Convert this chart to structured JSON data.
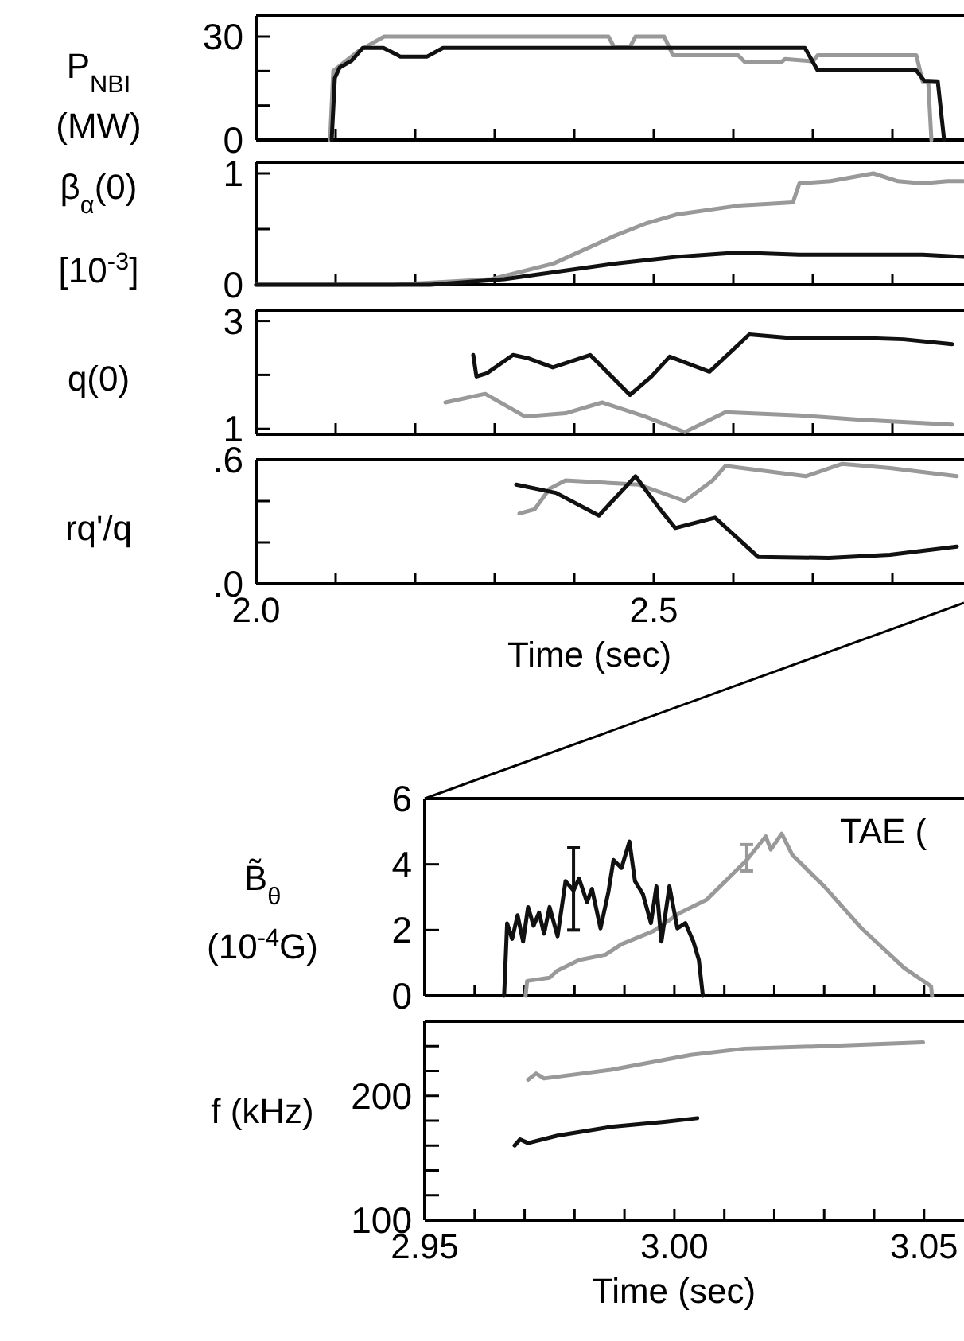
{
  "chart_data": [
    {
      "type": "line",
      "ylabel": "P$_{NBI}$\n(MW)",
      "xlim": [
        2.0,
        2.89
      ],
      "ylim": [
        0,
        36
      ],
      "tick_labels": "y",
      "xticks": [
        {
          "value": 2.0,
          "label": null
        },
        {
          "value": 2.1,
          "label": null
        },
        {
          "value": 2.2,
          "label": null
        },
        {
          "value": 2.3,
          "label": null
        },
        {
          "value": 2.4,
          "label": null
        },
        {
          "value": 2.5,
          "label": null
        },
        {
          "value": 2.6,
          "label": null
        },
        {
          "value": 2.7,
          "label": null
        },
        {
          "value": 2.8,
          "label": null
        }
      ],
      "yticks": [
        0,
        {
          "value": 10,
          "label": null
        },
        {
          "value": 20,
          "label": null
        },
        30
      ],
      "series": [
        {
          "color": "#999999",
          "x": [
            2.093,
            2.097,
            2.13,
            2.161,
            2.443,
            2.45,
            2.47,
            2.477,
            2.513,
            2.524,
            2.606,
            2.615,
            2.66,
            2.665,
            2.7,
            2.706,
            2.83,
            2.838,
            2.845,
            2.849
          ],
          "values": [
            0,
            20,
            26,
            30,
            30,
            27,
            27,
            30,
            30,
            24.6,
            24.6,
            22.5,
            22.5,
            23.5,
            22.8,
            24.6,
            24.6,
            17,
            17,
            0
          ]
        },
        {
          "color": "#111111",
          "x": [
            2.095,
            2.099,
            2.105,
            2.12,
            2.134,
            2.16,
            2.175,
            2.181,
            2.215,
            2.235,
            2.69,
            2.706,
            2.83,
            2.84,
            2.857,
            2.865
          ],
          "values": [
            0,
            18,
            21,
            23,
            26.7,
            26.7,
            25,
            24.2,
            24.2,
            26.7,
            26.7,
            20.2,
            20.2,
            17.2,
            17,
            0
          ]
        }
      ]
    },
    {
      "type": "line",
      "ylabel": "β$_{α}$(0)\n[10$^{-3}$]",
      "xlim": [
        2.0,
        2.89
      ],
      "ylim": [
        0,
        1.1
      ],
      "tick_labels": "y",
      "xticks": [
        {
          "value": 2.0,
          "label": null
        },
        {
          "value": 2.1,
          "label": null
        },
        {
          "value": 2.2,
          "label": null
        },
        {
          "value": 2.3,
          "label": null
        },
        {
          "value": 2.4,
          "label": null
        },
        {
          "value": 2.5,
          "label": null
        },
        {
          "value": 2.6,
          "label": null
        },
        {
          "value": 2.7,
          "label": null
        },
        {
          "value": 2.8,
          "label": null
        }
      ],
      "yticks": [
        0,
        {
          "value": 0.5,
          "label": null
        },
        1
      ],
      "series": [
        {
          "color": "#999999",
          "x": [
            2.0,
            2.173,
            2.296,
            2.374,
            2.451,
            2.49,
            2.528,
            2.606,
            2.675,
            2.683,
            2.722,
            2.776,
            2.807,
            2.838,
            2.869,
            2.889
          ],
          "values": [
            0,
            0,
            0.05,
            0.19,
            0.44,
            0.55,
            0.63,
            0.71,
            0.74,
            0.91,
            0.93,
            1.0,
            0.93,
            0.91,
            0.93,
            0.93
          ]
        },
        {
          "color": "#111111",
          "x": [
            2.0,
            2.219,
            2.312,
            2.451,
            2.528,
            2.606,
            2.683,
            2.76,
            2.838,
            2.889
          ],
          "values": [
            0,
            0,
            0.05,
            0.19,
            0.25,
            0.29,
            0.27,
            0.27,
            0.27,
            0.25
          ]
        }
      ]
    },
    {
      "type": "line",
      "ylabel": "q(0)",
      "xlim": [
        2.0,
        2.89
      ],
      "ylim": [
        0.9,
        3.2
      ],
      "tick_labels": "y",
      "xticks": [
        {
          "value": 2.0,
          "label": null
        },
        {
          "value": 2.1,
          "label": null
        },
        {
          "value": 2.2,
          "label": null
        },
        {
          "value": 2.3,
          "label": null
        },
        {
          "value": 2.4,
          "label": null
        },
        {
          "value": 2.5,
          "label": null
        },
        {
          "value": 2.6,
          "label": null
        },
        {
          "value": 2.7,
          "label": null
        },
        {
          "value": 2.8,
          "label": null
        }
      ],
      "yticks": [
        1,
        {
          "value": 2,
          "label": null
        },
        3
      ],
      "series": [
        {
          "color": "#999999",
          "x": [
            2.238,
            2.288,
            2.338,
            2.389,
            2.435,
            2.489,
            2.539,
            2.59,
            2.683,
            2.76,
            2.875
          ],
          "values": [
            1.49,
            1.65,
            1.23,
            1.29,
            1.49,
            1.23,
            0.94,
            1.31,
            1.25,
            1.17,
            1.08
          ]
        },
        {
          "color": "#111111",
          "x": [
            2.273,
            2.277,
            2.29,
            2.323,
            2.342,
            2.373,
            2.42,
            2.47,
            2.497,
            2.52,
            2.57,
            2.62,
            2.675,
            2.752,
            2.814,
            2.875
          ],
          "values": [
            2.37,
            1.97,
            2.03,
            2.37,
            2.31,
            2.14,
            2.37,
            1.63,
            1.97,
            2.34,
            2.06,
            2.75,
            2.68,
            2.69,
            2.66,
            2.57
          ]
        }
      ]
    },
    {
      "type": "line",
      "ylabel": "rq'/q",
      "xlabel": "Time (sec)",
      "xlim": [
        2.0,
        2.89
      ],
      "ylim": [
        0,
        0.6
      ],
      "xticks": [
        {
          "value": 2.0,
          "label": "2.0"
        },
        {
          "value": 2.1,
          "label": null
        },
        {
          "value": 2.2,
          "label": null
        },
        {
          "value": 2.3,
          "label": null
        },
        {
          "value": 2.4,
          "label": null
        },
        {
          "value": 2.5,
          "label": "2.5"
        },
        {
          "value": 2.6,
          "label": null
        },
        {
          "value": 2.7,
          "label": null
        },
        {
          "value": 2.8,
          "label": null
        }
      ],
      "yticks": [
        {
          "value": 0,
          "label": ".0"
        },
        {
          "value": 0.2,
          "label": null
        },
        {
          "value": 0.4,
          "label": null
        },
        {
          "value": 0.6,
          "label": ".6"
        }
      ],
      "series": [
        {
          "color": "#999999",
          "x": [
            2.331,
            2.35,
            2.369,
            2.389,
            2.481,
            2.539,
            2.574,
            2.59,
            2.691,
            2.737,
            2.797,
            2.881
          ],
          "values": [
            0.34,
            0.36,
            0.46,
            0.5,
            0.48,
            0.4,
            0.5,
            0.57,
            0.52,
            0.58,
            0.56,
            0.52
          ]
        },
        {
          "color": "#111111",
          "x": [
            2.327,
            2.377,
            2.431,
            2.477,
            2.508,
            2.527,
            2.577,
            2.631,
            2.72,
            2.797,
            2.881
          ],
          "values": [
            0.48,
            0.44,
            0.33,
            0.52,
            0.36,
            0.27,
            0.32,
            0.13,
            0.125,
            0.14,
            0.18
          ]
        }
      ]
    },
    {
      "type": "line",
      "ylabel": "B̃$_{θ}$\n(10$^{-4}$G)",
      "xlim": [
        2.95,
        3.058
      ],
      "ylim": [
        0,
        6
      ],
      "tick_labels": "y",
      "annotations": [
        "TAE ("
      ],
      "xticks": [
        {
          "value": 2.95,
          "label": null
        },
        {
          "value": 2.96,
          "label": null
        },
        {
          "value": 2.97,
          "label": null
        },
        {
          "value": 2.98,
          "label": null
        },
        {
          "value": 2.99,
          "label": null
        },
        {
          "value": 3.0,
          "label": null
        },
        {
          "value": 3.01,
          "label": null
        },
        {
          "value": 3.02,
          "label": null
        },
        {
          "value": 3.03,
          "label": null
        },
        {
          "value": 3.04,
          "label": null
        },
        {
          "value": 3.05,
          "label": null
        }
      ],
      "yticks": [
        0,
        2,
        4,
        6
      ],
      "series": [
        {
          "color": "#999999",
          "x": [
            2.9702,
            2.9705,
            2.975,
            2.9766,
            2.9809,
            2.9862,
            2.9894,
            2.9958,
            3.0012,
            3.0065,
            3.0145,
            3.0183,
            3.0193,
            3.0215,
            3.0236,
            3.03,
            3.0375,
            3.046,
            3.0514,
            3.0516
          ],
          "values": [
            0,
            0.45,
            0.55,
            0.77,
            1.09,
            1.25,
            1.57,
            1.97,
            2.53,
            2.93,
            4.13,
            4.85,
            4.45,
            4.93,
            4.29,
            3.33,
            2.05,
            0.85,
            0.29,
            0
          ],
          "errors": [
            null,
            null,
            null,
            null,
            null,
            null,
            null,
            null,
            null,
            null,
            [
              3.8,
              4.6
            ],
            null,
            null,
            null,
            null,
            null,
            null,
            null,
            null,
            null
          ]
        },
        {
          "color": "#111111",
          "x": [
            2.9659,
            2.9665,
            2.9675,
            2.9686,
            2.9697,
            2.9707,
            2.9718,
            2.9729,
            2.9739,
            2.975,
            2.9766,
            2.9782,
            2.9798,
            2.9809,
            2.9825,
            2.9835,
            2.9852,
            2.9868,
            2.9878,
            2.9894,
            2.991,
            2.9921,
            2.9937,
            2.9953,
            2.9964,
            2.9974,
            2.999,
            3.0006,
            3.0022,
            3.0038,
            3.0049,
            3.0057
          ],
          "values": [
            0,
            2.2,
            1.73,
            2.45,
            1.65,
            2.7,
            2.13,
            2.53,
            1.89,
            2.7,
            1.81,
            3.49,
            3.2,
            3.57,
            2.85,
            3.25,
            2.05,
            3.17,
            4.13,
            3.89,
            4.69,
            3.49,
            3.09,
            2.21,
            3.33,
            1.65,
            3.33,
            2.05,
            2.21,
            1.65,
            1.09,
            0
          ],
          "errors": [
            null,
            null,
            null,
            null,
            null,
            null,
            null,
            null,
            null,
            null,
            null,
            null,
            [
              2.0,
              4.5
            ],
            null,
            null,
            null,
            null,
            null,
            null,
            null,
            null,
            null,
            null,
            null,
            null,
            null,
            null,
            null,
            null,
            null,
            null,
            null
          ]
        }
      ]
    },
    {
      "type": "line",
      "ylabel": "f (kHz)",
      "xlabel": "Time (sec)",
      "xlim": [
        2.95,
        3.058
      ],
      "ylim": [
        100,
        260
      ],
      "xticks": [
        {
          "value": 2.95,
          "label": "2.95"
        },
        {
          "value": 2.96,
          "label": null
        },
        {
          "value": 2.97,
          "label": null
        },
        {
          "value": 2.98,
          "label": null
        },
        {
          "value": 2.99,
          "label": null
        },
        {
          "value": 3.0,
          "label": "3.00"
        },
        {
          "value": 3.01,
          "label": null
        },
        {
          "value": 3.02,
          "label": null
        },
        {
          "value": 3.03,
          "label": null
        },
        {
          "value": 3.04,
          "label": null
        },
        {
          "value": 3.05,
          "label": "3.05"
        }
      ],
      "yticks": [
        100,
        {
          "value": 120,
          "label": null
        },
        {
          "value": 140,
          "label": null
        },
        {
          "value": 160,
          "label": null
        },
        {
          "value": 180,
          "label": null
        },
        200,
        {
          "value": 220,
          "label": null
        },
        {
          "value": 240,
          "label": null
        }
      ],
      "series": [
        {
          "color": "#999999",
          "x": [
            2.9707,
            2.9723,
            2.9739,
            2.9873,
            3.0033,
            3.014,
            3.03,
            3.0498
          ],
          "values": [
            213,
            218,
            214,
            221,
            233,
            238,
            240,
            243
          ]
        },
        {
          "color": "#111111",
          "x": [
            2.968,
            2.9691,
            2.9707,
            2.9766,
            2.9873,
            2.998,
            3.0046
          ],
          "values": [
            160,
            165,
            162,
            168,
            175,
            179,
            182
          ]
        }
      ]
    }
  ]
}
